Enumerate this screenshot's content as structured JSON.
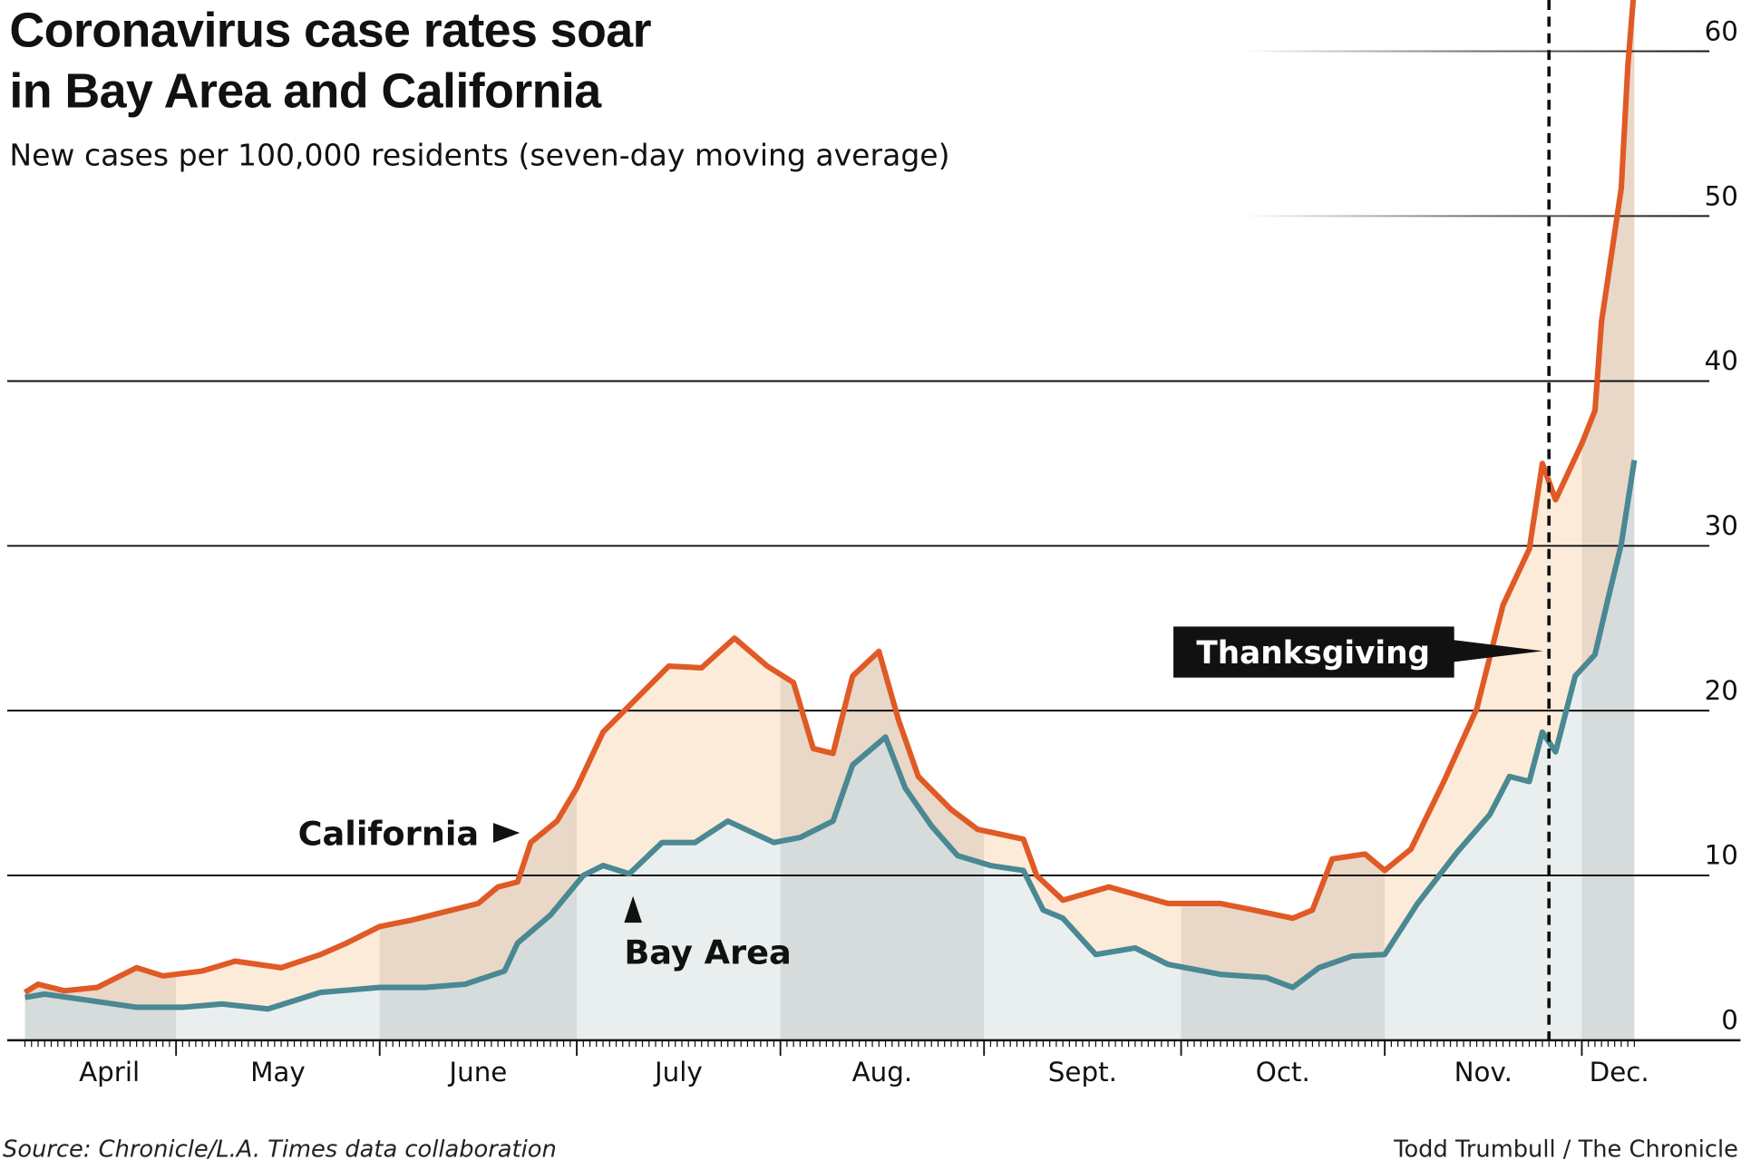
{
  "chart_data": {
    "type": "line",
    "title": "Coronavirus case rates soar in Bay Area and California",
    "title_lines": [
      "Coronavirus case rates soar",
      "in Bay Area and California"
    ],
    "subtitle": "New cases per 100,000 residents (seven-day moving average)",
    "xlabel": "",
    "ylabel": "",
    "ylim": [
      0,
      63
    ],
    "yticks": [
      "0",
      "10",
      "20",
      "30",
      "40",
      "50",
      "60"
    ],
    "ytick_values": [
      0,
      10,
      20,
      30,
      40,
      50,
      60
    ],
    "xlim": [
      "2020-04-08",
      "2020-12-09"
    ],
    "xtick_labels": [
      "April",
      "May",
      "June",
      "July",
      "Aug.",
      "Sept.",
      "Oct.",
      "Nov.",
      "Dec."
    ],
    "month_starts": [
      "2020-04-01",
      "2020-05-01",
      "2020-06-01",
      "2020-07-01",
      "2020-08-01",
      "2020-09-01",
      "2020-10-01",
      "2020-11-01",
      "2020-12-01"
    ],
    "grid": true,
    "colors": {
      "california": "#e05a26",
      "bay_area": "#4a8893",
      "between_fill": "#fdebd9",
      "under_fill": "#e9efef",
      "band_shade": "#000000"
    },
    "series": [
      {
        "name": "California",
        "label": "California",
        "points": [
          [
            "2020-04-08",
            2.9
          ],
          [
            "2020-04-10",
            3.4
          ],
          [
            "2020-04-14",
            3.0
          ],
          [
            "2020-04-19",
            3.2
          ],
          [
            "2020-04-25",
            4.4
          ],
          [
            "2020-04-29",
            3.9
          ],
          [
            "2020-05-05",
            4.2
          ],
          [
            "2020-05-10",
            4.8
          ],
          [
            "2020-05-17",
            4.4
          ],
          [
            "2020-05-23",
            5.2
          ],
          [
            "2020-05-27",
            5.9
          ],
          [
            "2020-06-01",
            6.9
          ],
          [
            "2020-06-06",
            7.3
          ],
          [
            "2020-06-11",
            7.8
          ],
          [
            "2020-06-16",
            8.3
          ],
          [
            "2020-06-19",
            9.3
          ],
          [
            "2020-06-22",
            9.6
          ],
          [
            "2020-06-24",
            12.0
          ],
          [
            "2020-06-28",
            13.3
          ],
          [
            "2020-07-01",
            15.3
          ],
          [
            "2020-07-05",
            18.7
          ],
          [
            "2020-07-10",
            20.7
          ],
          [
            "2020-07-15",
            22.7
          ],
          [
            "2020-07-20",
            22.6
          ],
          [
            "2020-07-25",
            24.4
          ],
          [
            "2020-07-30",
            22.7
          ],
          [
            "2020-08-03",
            21.7
          ],
          [
            "2020-08-06",
            17.7
          ],
          [
            "2020-08-09",
            17.4
          ],
          [
            "2020-08-12",
            22.1
          ],
          [
            "2020-08-16",
            23.6
          ],
          [
            "2020-08-19",
            19.4
          ],
          [
            "2020-08-22",
            16.0
          ],
          [
            "2020-08-27",
            14.0
          ],
          [
            "2020-08-31",
            12.8
          ],
          [
            "2020-09-07",
            12.2
          ],
          [
            "2020-09-09",
            10.0
          ],
          [
            "2020-09-13",
            8.5
          ],
          [
            "2020-09-20",
            9.3
          ],
          [
            "2020-09-29",
            8.3
          ],
          [
            "2020-10-07",
            8.3
          ],
          [
            "2020-10-12",
            7.9
          ],
          [
            "2020-10-18",
            7.4
          ],
          [
            "2020-10-21",
            7.9
          ],
          [
            "2020-10-24",
            11.0
          ],
          [
            "2020-10-29",
            11.3
          ],
          [
            "2020-11-01",
            10.3
          ],
          [
            "2020-11-05",
            11.6
          ],
          [
            "2020-11-10",
            15.7
          ],
          [
            "2020-11-15",
            20.1
          ],
          [
            "2020-11-19",
            26.4
          ],
          [
            "2020-11-23",
            29.8
          ],
          [
            "2020-11-25",
            35.0
          ],
          [
            "2020-11-27",
            32.8
          ],
          [
            "2020-12-01",
            36.2
          ],
          [
            "2020-12-03",
            38.2
          ],
          [
            "2020-12-04",
            43.6
          ],
          [
            "2020-12-07",
            51.7
          ],
          [
            "2020-12-08",
            59.1
          ],
          [
            "2020-12-09",
            64.0
          ]
        ]
      },
      {
        "name": "Bay Area",
        "label": "Bay Area",
        "points": [
          [
            "2020-04-08",
            2.6
          ],
          [
            "2020-04-11",
            2.8
          ],
          [
            "2020-04-18",
            2.4
          ],
          [
            "2020-04-25",
            2.0
          ],
          [
            "2020-05-02",
            2.0
          ],
          [
            "2020-05-08",
            2.2
          ],
          [
            "2020-05-15",
            1.9
          ],
          [
            "2020-05-23",
            2.9
          ],
          [
            "2020-06-01",
            3.2
          ],
          [
            "2020-06-08",
            3.2
          ],
          [
            "2020-06-14",
            3.4
          ],
          [
            "2020-06-20",
            4.2
          ],
          [
            "2020-06-22",
            5.9
          ],
          [
            "2020-06-27",
            7.6
          ],
          [
            "2020-07-02",
            10.0
          ],
          [
            "2020-07-05",
            10.6
          ],
          [
            "2020-07-09",
            10.1
          ],
          [
            "2020-07-14",
            12.0
          ],
          [
            "2020-07-19",
            12.0
          ],
          [
            "2020-07-24",
            13.3
          ],
          [
            "2020-07-31",
            12.0
          ],
          [
            "2020-08-04",
            12.3
          ],
          [
            "2020-08-09",
            13.3
          ],
          [
            "2020-08-12",
            16.7
          ],
          [
            "2020-08-17",
            18.4
          ],
          [
            "2020-08-20",
            15.3
          ],
          [
            "2020-08-24",
            13.0
          ],
          [
            "2020-08-28",
            11.2
          ],
          [
            "2020-09-02",
            10.6
          ],
          [
            "2020-09-07",
            10.3
          ],
          [
            "2020-09-10",
            7.9
          ],
          [
            "2020-09-13",
            7.4
          ],
          [
            "2020-09-18",
            5.2
          ],
          [
            "2020-09-24",
            5.6
          ],
          [
            "2020-09-29",
            4.6
          ],
          [
            "2020-10-07",
            4.0
          ],
          [
            "2020-10-14",
            3.8
          ],
          [
            "2020-10-18",
            3.2
          ],
          [
            "2020-10-22",
            4.4
          ],
          [
            "2020-10-27",
            5.1
          ],
          [
            "2020-11-01",
            5.2
          ],
          [
            "2020-11-06",
            8.3
          ],
          [
            "2020-11-12",
            11.4
          ],
          [
            "2020-11-17",
            13.7
          ],
          [
            "2020-11-20",
            16.0
          ],
          [
            "2020-11-23",
            15.7
          ],
          [
            "2020-11-25",
            18.7
          ],
          [
            "2020-11-27",
            17.5
          ],
          [
            "2020-11-30",
            22.1
          ],
          [
            "2020-12-03",
            23.4
          ],
          [
            "2020-12-05",
            26.8
          ],
          [
            "2020-12-07",
            30.1
          ],
          [
            "2020-12-09",
            35.2
          ]
        ]
      }
    ],
    "annotations": [
      {
        "text": "Thanksgiving",
        "date": "2020-11-26",
        "style": "dashed vertical line"
      }
    ]
  },
  "footer": {
    "source": "Source: Chronicle/L.A. Times data collaboration",
    "credit": "Todd Trumbull / The Chronicle"
  }
}
